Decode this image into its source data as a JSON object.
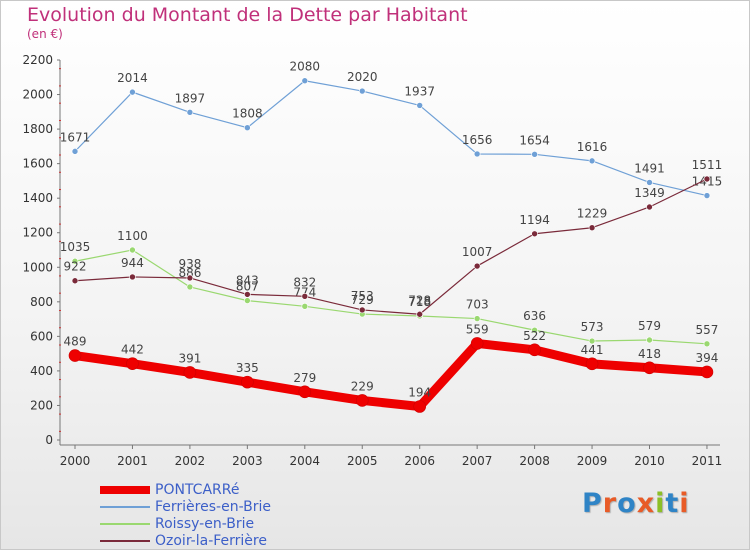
{
  "header": {
    "title": "Evolution du Montant de la Dette par Habitant",
    "subtitle": "(en €)"
  },
  "logo": {
    "text": "Proxiti",
    "colors": [
      "#2f84c6",
      "#e85b27",
      "#2f84c6",
      "#e85b27",
      "#8cbf26",
      "#2f84c6",
      "#e85b27"
    ]
  },
  "chart_data": {
    "type": "line",
    "x": [
      "2000",
      "2001",
      "2002",
      "2003",
      "2004",
      "2005",
      "2006",
      "2007",
      "2008",
      "2009",
      "2010",
      "2011"
    ],
    "ylim": [
      0,
      2200
    ],
    "yticks": [
      0,
      200,
      400,
      600,
      800,
      1000,
      1200,
      1400,
      1600,
      1800,
      2000,
      2200
    ],
    "grid": false,
    "legend_position": "bottom-left",
    "series": [
      {
        "name": "PONTCARRé",
        "color": "#ee0000",
        "width": 9,
        "labels": true,
        "values": [
          489,
          442,
          391,
          335,
          279,
          229,
          194,
          559,
          522,
          441,
          418,
          394
        ]
      },
      {
        "name": "Ferrières-en-Brie",
        "color": "#6fa0d6",
        "width": 1.2,
        "labels": true,
        "values": [
          1671,
          2014,
          1897,
          1808,
          2080,
          2020,
          1937,
          1656,
          1654,
          1616,
          1491,
          1415
        ]
      },
      {
        "name": "Roissy-en-Brie",
        "color": "#9ad870",
        "width": 1.2,
        "labels": true,
        "values": [
          1035,
          1100,
          886,
          807,
          774,
          729,
          718,
          703,
          636,
          573,
          579,
          557
        ]
      },
      {
        "name": "Ozoir-la-Ferrière",
        "color": "#7a2a3a",
        "width": 1.2,
        "labels": true,
        "values": [
          922,
          944,
          938,
          843,
          832,
          753,
          728,
          1007,
          1194,
          1229,
          1349,
          1511
        ]
      }
    ]
  }
}
